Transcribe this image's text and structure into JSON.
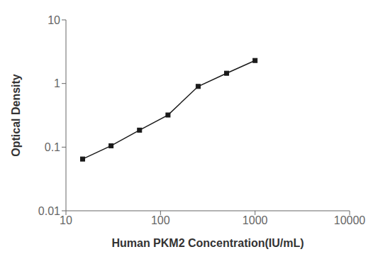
{
  "chart_data": {
    "type": "line",
    "x": [
      15,
      30,
      60,
      120,
      250,
      500,
      1000
    ],
    "values": [
      0.065,
      0.105,
      0.185,
      0.32,
      0.9,
      1.45,
      2.3
    ],
    "xlabel": "Human PKM2 Concentration(IU/mL)",
    "ylabel": "Optical Density",
    "xlim": [
      10,
      10000
    ],
    "ylim": [
      0.01,
      10
    ],
    "xticks": [
      10,
      100,
      1000,
      10000
    ],
    "yticks": [
      0.01,
      0.1,
      1,
      10
    ],
    "log": true,
    "color": "#1a1a1a",
    "marker": "square",
    "grid": false
  }
}
